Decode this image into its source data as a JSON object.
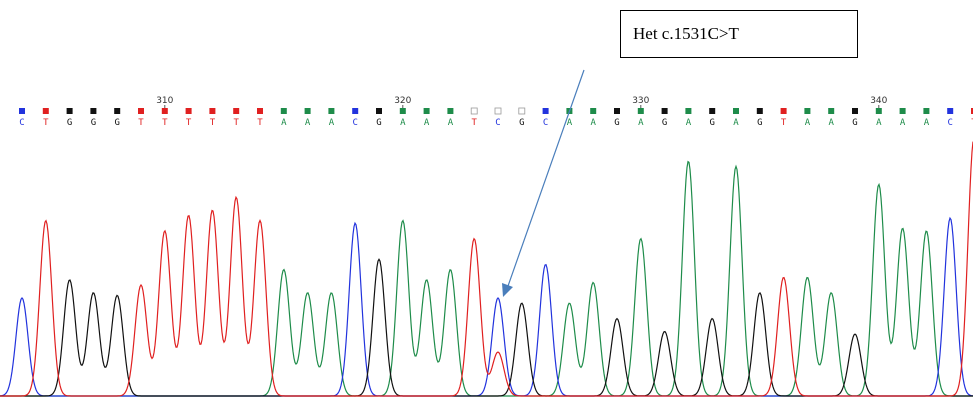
{
  "annotation": {
    "label": "Het c.1531C>T"
  },
  "chart_data": {
    "type": "line",
    "position_labels": [
      "310",
      "320",
      "330",
      "340"
    ],
    "bases": [
      "C",
      "T",
      "G",
      "G",
      "G",
      "T",
      "T",
      "T",
      "T",
      "T",
      "T",
      "A",
      "A",
      "A",
      "C",
      "G",
      "A",
      "A",
      "A",
      "T",
      "C",
      "G",
      "C",
      "A",
      "A",
      "G",
      "A",
      "G",
      "A",
      "G",
      "A",
      "G",
      "T",
      "A",
      "A",
      "G",
      "A",
      "A",
      "A",
      "C",
      "T"
    ],
    "quality_low": [
      19,
      20,
      21
    ],
    "peaks": [
      {
        "base": "C",
        "height": 0.38
      },
      {
        "base": "T",
        "height": 0.68
      },
      {
        "base": "G",
        "height": 0.45
      },
      {
        "base": "G",
        "height": 0.4
      },
      {
        "base": "G",
        "height": 0.39
      },
      {
        "base": "T",
        "height": 0.43
      },
      {
        "base": "T",
        "height": 0.64
      },
      {
        "base": "T",
        "height": 0.7
      },
      {
        "base": "T",
        "height": 0.72
      },
      {
        "base": "T",
        "height": 0.77
      },
      {
        "base": "T",
        "height": 0.68
      },
      {
        "base": "A",
        "height": 0.49
      },
      {
        "base": "A",
        "height": 0.4
      },
      {
        "base": "A",
        "height": 0.4
      },
      {
        "base": "C",
        "height": 0.67
      },
      {
        "base": "G",
        "height": 0.53
      },
      {
        "base": "A",
        "height": 0.68
      },
      {
        "base": "A",
        "height": 0.45
      },
      {
        "base": "A",
        "height": 0.49
      },
      {
        "base": "T",
        "height": 0.61
      },
      {
        "base": "C",
        "height": 0.38
      },
      {
        "base": "G",
        "height": 0.36
      },
      {
        "base": "C",
        "height": 0.51
      },
      {
        "base": "A",
        "height": 0.36
      },
      {
        "base": "A",
        "height": 0.44
      },
      {
        "base": "G",
        "height": 0.3
      },
      {
        "base": "A",
        "height": 0.61
      },
      {
        "base": "G",
        "height": 0.25
      },
      {
        "base": "A",
        "height": 0.91
      },
      {
        "base": "G",
        "height": 0.3
      },
      {
        "base": "A",
        "height": 0.89
      },
      {
        "base": "G",
        "height": 0.4
      },
      {
        "base": "T",
        "height": 0.46
      },
      {
        "base": "A",
        "height": 0.46
      },
      {
        "base": "A",
        "height": 0.4
      },
      {
        "base": "G",
        "height": 0.24
      },
      {
        "base": "A",
        "height": 0.82
      },
      {
        "base": "A",
        "height": 0.65
      },
      {
        "base": "A",
        "height": 0.64
      },
      {
        "base": "C",
        "height": 0.69
      },
      {
        "base": "T",
        "height": 1.0
      }
    ],
    "secondary_peaks": [
      {
        "index": 20,
        "base": "T",
        "height": 0.17
      }
    ],
    "colors": {
      "A": "#1e8c4a",
      "C": "#2233dd",
      "G": "#111111",
      "T": "#e02020"
    },
    "arrow_color": "#4a7ebb"
  }
}
